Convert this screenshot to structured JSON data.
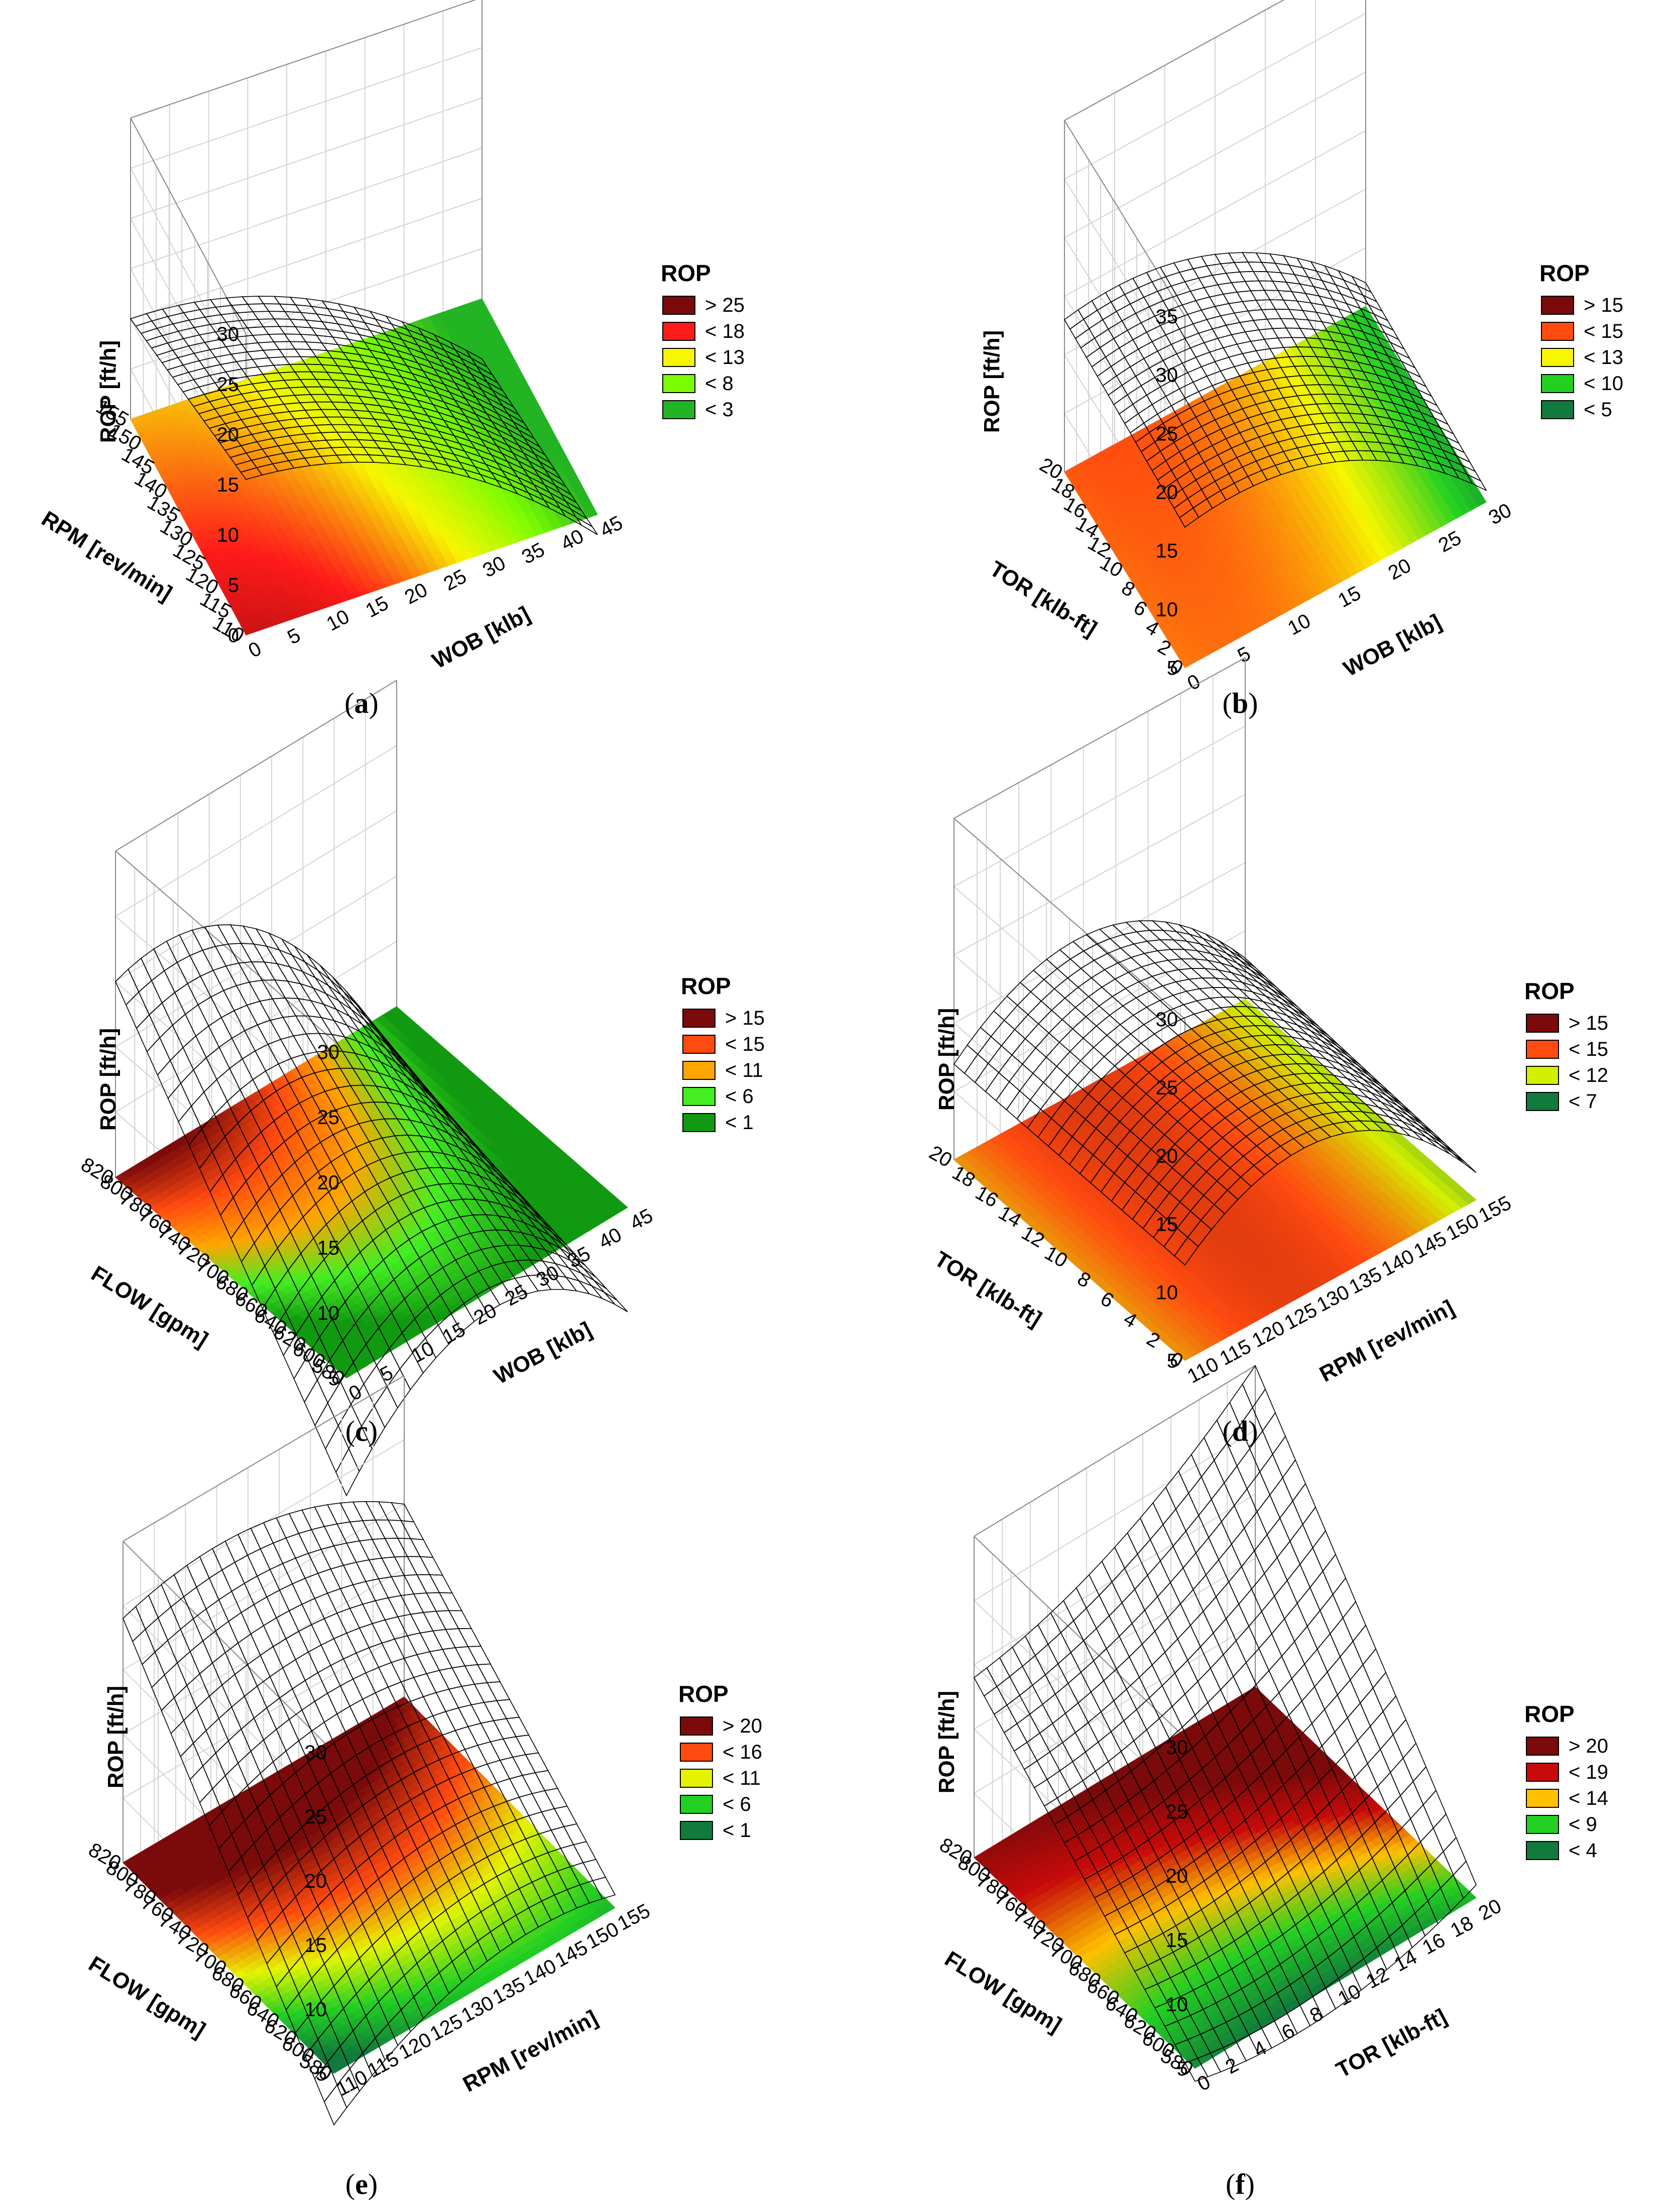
{
  "figure": {
    "colors": {
      "dark_red": "#7b0a0a",
      "red": "#d81010",
      "orange_red": "#ff4a10",
      "orange": "#ffa500",
      "yellow": "#f6f600",
      "light_green": "#7cfc00",
      "green": "#22d022",
      "dark_green": "#117a3c"
    }
  },
  "chart_data": [
    {
      "panel": "a",
      "type": "surface3d",
      "zlabel": "ROP [ft/h]",
      "xlabel": "WOB [klb]",
      "ylabel": "RPM [rev/min]",
      "x_ticks": [
        "0",
        "5",
        "10",
        "15",
        "20",
        "25",
        "30",
        "35",
        "40",
        "45"
      ],
      "y_ticks": [
        "110",
        "115",
        "120",
        "125",
        "130",
        "135",
        "140",
        "145",
        "150",
        "155"
      ],
      "z_ticks": [
        "0",
        "5",
        "10",
        "15",
        "20",
        "25",
        "30"
      ],
      "xlim": [
        0,
        45
      ],
      "ylim": [
        110,
        155
      ],
      "zlim": [
        0,
        30
      ],
      "corner_values": {
        "x0y0": 15.5,
        "x1y0": -2,
        "x0y1": 10,
        "x1y1": -6
      },
      "curvature": 4,
      "legend": {
        "title": "ROP",
        "entries": [
          {
            "label": "> 25",
            "color": "#7b0a0a"
          },
          {
            "label": "< 18",
            "color": "#ff1a1a"
          },
          {
            "label": "< 13",
            "color": "#f6f600"
          },
          {
            "label": "< 8",
            "color": "#7cfc00"
          },
          {
            "label": "< 3",
            "color": "#22b422"
          }
        ]
      }
    },
    {
      "panel": "b",
      "type": "surface3d",
      "zlabel": "ROP [ft/h]",
      "xlabel": "WOB [klb]",
      "ylabel": "TOR [klb-ft]",
      "x_ticks": [
        "0",
        "5",
        "10",
        "15",
        "20",
        "25",
        "30"
      ],
      "y_ticks": [
        "0",
        "2",
        "4",
        "6",
        "8",
        "10",
        "12",
        "14",
        "16",
        "18",
        "20"
      ],
      "z_ticks": [
        "5",
        "10",
        "15",
        "20",
        "25",
        "30",
        "35"
      ],
      "xlim": [
        0,
        30
      ],
      "ylim": [
        0,
        20
      ],
      "zlim": [
        5,
        35
      ],
      "corner_values": {
        "x0y0": 17,
        "x1y0": 6,
        "x0y1": 18,
        "x1y1": 7
      },
      "curvature": 4,
      "legend": {
        "title": "ROP",
        "entries": [
          {
            "label": "> 15",
            "color": "#7b0a0a"
          },
          {
            "label": "< 15",
            "color": "#ff4a10"
          },
          {
            "label": "< 13",
            "color": "#f6f600"
          },
          {
            "label": "< 10",
            "color": "#22d022"
          },
          {
            "label": "< 5",
            "color": "#117a3c"
          }
        ]
      }
    },
    {
      "panel": "c",
      "type": "surface3d",
      "zlabel": "ROP [ft/h]",
      "xlabel": "WOB [klb]",
      "ylabel": "FLOW [gpm]",
      "x_ticks": [
        "0",
        "5",
        "10",
        "15",
        "20",
        "25",
        "30",
        "35",
        "40",
        "45"
      ],
      "y_ticks": [
        "580",
        "600",
        "620",
        "640",
        "660",
        "680",
        "700",
        "720",
        "740",
        "760",
        "780",
        "800",
        "820"
      ],
      "z_ticks": [
        "5",
        "10",
        "15",
        "20",
        "25",
        "30"
      ],
      "xlim": [
        0,
        45
      ],
      "ylim": [
        580,
        820
      ],
      "zlim": [
        5,
        30
      ],
      "corner_values": {
        "x0y0": -4,
        "x1y0": -3,
        "x0y1": 20,
        "x1y1": 1
      },
      "curvature": 7,
      "legend": {
        "title": "ROP",
        "entries": [
          {
            "label": "> 15",
            "color": "#7b0a0a"
          },
          {
            "label": "< 15",
            "color": "#ff4a10"
          },
          {
            "label": "< 11",
            "color": "#ffa500"
          },
          {
            "label": "< 6",
            "color": "#44ee22"
          },
          {
            "label": "< 1",
            "color": "#119a11"
          }
        ]
      }
    },
    {
      "panel": "d",
      "type": "surface3d",
      "zlabel": "ROP [ft/h]",
      "xlabel": "RPM [rev/min]",
      "ylabel": "TOR [klb-ft]",
      "x_ticks": [
        "110",
        "115",
        "120",
        "125",
        "130",
        "135",
        "140",
        "145",
        "150",
        "155"
      ],
      "y_ticks": [
        "0",
        "2",
        "4",
        "6",
        "8",
        "10",
        "12",
        "14",
        "16",
        "18",
        "20"
      ],
      "z_ticks": [
        "5",
        "10",
        "15",
        "20",
        "25",
        "30"
      ],
      "xlim": [
        110,
        155
      ],
      "ylim": [
        0,
        20
      ],
      "zlim": [
        5,
        30
      ],
      "corner_values": {
        "x0y0": 12,
        "x1y0": 7,
        "x0y1": 12,
        "x1y1": 8
      },
      "curvature": 6,
      "legend": {
        "title": "ROP",
        "entries": [
          {
            "label": "> 15",
            "color": "#7b0a0a"
          },
          {
            "label": "< 15",
            "color": "#ff4a10"
          },
          {
            "label": "< 12",
            "color": "#d4f000"
          },
          {
            "label": "< 7",
            "color": "#117a3c"
          }
        ]
      }
    },
    {
      "panel": "e",
      "type": "surface3d",
      "zlabel": "ROP [ft/h]",
      "xlabel": "RPM [rev/min]",
      "ylabel": "FLOW [gpm]",
      "x_ticks": [
        "110",
        "115",
        "120",
        "125",
        "130",
        "135",
        "140",
        "145",
        "150",
        "155"
      ],
      "y_ticks": [
        "580",
        "600",
        "620",
        "640",
        "660",
        "680",
        "700",
        "720",
        "740",
        "760",
        "780",
        "800",
        "820"
      ],
      "z_ticks": [
        "5",
        "10",
        "15",
        "20",
        "25",
        "30"
      ],
      "xlim": [
        110,
        155
      ],
      "ylim": [
        580,
        820
      ],
      "zlim": [
        5,
        30
      ],
      "corner_values": {
        "x0y0": 1,
        "x1y0": 6,
        "x0y1": 24,
        "x1y1": 20
      },
      "curvature": 3,
      "legend": {
        "title": "ROP",
        "entries": [
          {
            "label": "> 20",
            "color": "#7b0a0a"
          },
          {
            "label": "< 16",
            "color": "#ff4a10"
          },
          {
            "label": "< 11",
            "color": "#e4f400"
          },
          {
            "label": "< 6",
            "color": "#22d022"
          },
          {
            "label": "< 1",
            "color": "#117a3c"
          }
        ]
      }
    },
    {
      "panel": "f",
      "type": "surface3d",
      "zlabel": "ROP [ft/h]",
      "xlabel": "TOR [klb-ft]",
      "ylabel": "FLOW [gpm]",
      "x_ticks": [
        "0",
        "2",
        "4",
        "6",
        "8",
        "10",
        "12",
        "14",
        "16",
        "18",
        "20"
      ],
      "y_ticks": [
        "580",
        "600",
        "620",
        "640",
        "660",
        "680",
        "700",
        "720",
        "740",
        "760",
        "780",
        "800",
        "820"
      ],
      "z_ticks": [
        "5",
        "10",
        "15",
        "20",
        "25",
        "30"
      ],
      "xlim": [
        0,
        20
      ],
      "ylim": [
        580,
        820
      ],
      "zlim": [
        5,
        30
      ],
      "corner_values": {
        "x0y0": 4,
        "x1y0": 6,
        "x0y1": 19,
        "x1y1": 30
      },
      "curvature": -2,
      "legend": {
        "title": "ROP",
        "entries": [
          {
            "label": "> 20",
            "color": "#7b0a0a"
          },
          {
            "label": "< 19",
            "color": "#c80a0a"
          },
          {
            "label": "< 14",
            "color": "#ffc000"
          },
          {
            "label": "< 9",
            "color": "#22d022"
          },
          {
            "label": "< 4",
            "color": "#117a3c"
          }
        ]
      }
    }
  ],
  "captions": {
    "a": {
      "open": "(",
      "letter": "a",
      "close": ")"
    },
    "b": {
      "open": "(",
      "letter": "b",
      "close": ")"
    },
    "c": {
      "open": "(",
      "letter": "c",
      "close": ")"
    },
    "d": {
      "open": "(",
      "letter": "d",
      "close": ")"
    },
    "e": {
      "open": "(",
      "letter": "e",
      "close": ")"
    },
    "f": {
      "open": "(",
      "letter": "f",
      "close": ")"
    }
  }
}
